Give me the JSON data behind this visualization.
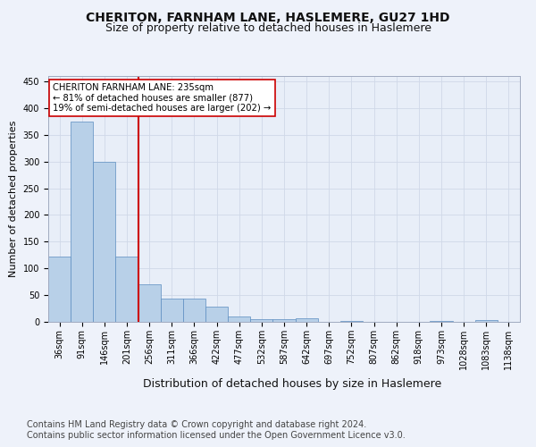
{
  "title": "CHERITON, FARNHAM LANE, HASLEMERE, GU27 1HD",
  "subtitle": "Size of property relative to detached houses in Haslemere",
  "xlabel": "Distribution of detached houses by size in Haslemere",
  "ylabel": "Number of detached properties",
  "bar_labels": [
    "36sqm",
    "91sqm",
    "146sqm",
    "201sqm",
    "256sqm",
    "311sqm",
    "366sqm",
    "422sqm",
    "477sqm",
    "532sqm",
    "587sqm",
    "642sqm",
    "697sqm",
    "752sqm",
    "807sqm",
    "862sqm",
    "918sqm",
    "973sqm",
    "1028sqm",
    "1083sqm",
    "1138sqm"
  ],
  "bar_values": [
    122,
    375,
    300,
    122,
    70,
    43,
    43,
    28,
    10,
    5,
    5,
    6,
    0,
    2,
    0,
    0,
    0,
    1,
    0,
    3,
    0
  ],
  "bar_color": "#b8d0e8",
  "bar_edge_color": "#5b8dc0",
  "vline_x": 3.5,
  "vline_color": "#cc0000",
  "annotation_text": "CHERITON FARNHAM LANE: 235sqm\n← 81% of detached houses are smaller (877)\n19% of semi-detached houses are larger (202) →",
  "annotation_box_color": "#ffffff",
  "annotation_box_edge_color": "#cc0000",
  "ylim": [
    0,
    460
  ],
  "yticks": [
    0,
    50,
    100,
    150,
    200,
    250,
    300,
    350,
    400,
    450
  ],
  "footer_text": "Contains HM Land Registry data © Crown copyright and database right 2024.\nContains public sector information licensed under the Open Government Licence v3.0.",
  "bg_color": "#eef2fa",
  "plot_bg_color": "#e8eef8",
  "grid_color": "#d0d8e8",
  "title_fontsize": 10,
  "subtitle_fontsize": 9,
  "xlabel_fontsize": 9,
  "ylabel_fontsize": 8,
  "tick_fontsize": 7,
  "footer_fontsize": 7
}
